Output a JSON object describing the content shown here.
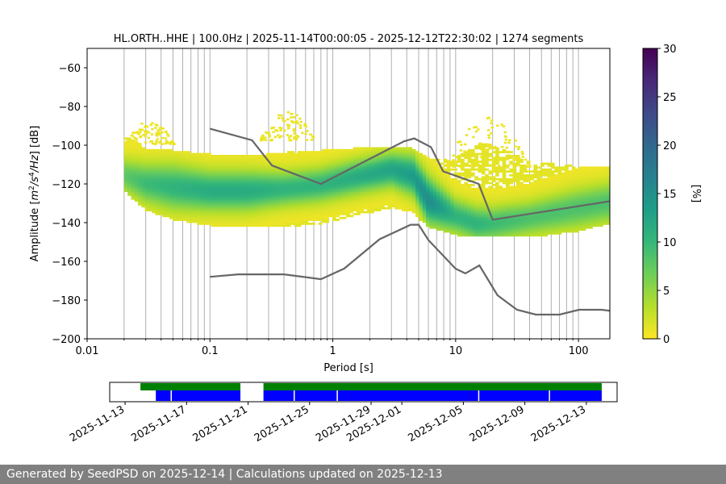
{
  "footer_text": "Generated by SeedPSD on 2025-12-14 | Calculations updated on 2025-12-13",
  "chart_data": {
    "type": "heatmap",
    "title": "HL.ORTH..HHE | 100.0Hz | 2025-11-14T00:00:05 - 2025-12-12T22:30:02 | 1274 segments",
    "xlabel": "Period [s]",
    "ylabel": "Amplitude [m²/s⁴/Hz] [dB]",
    "xscale": "log",
    "xlim": [
      0.01,
      180
    ],
    "ylim": [
      -200,
      -50
    ],
    "x_ticks": [
      0.01,
      0.1,
      1,
      10,
      100
    ],
    "x_tick_labels": [
      "0.01",
      "0.1",
      "1",
      "10",
      "100"
    ],
    "y_ticks": [
      -200,
      -180,
      -160,
      -140,
      -120,
      -100,
      -80,
      -60
    ],
    "y_tick_labels": [
      "−200",
      "−180",
      "−160",
      "−140",
      "−120",
      "−100",
      "−80",
      "−60"
    ],
    "grid": "vertical",
    "colorbar": {
      "label": "[%]",
      "range": [
        0,
        30
      ],
      "ticks": [
        0,
        5,
        10,
        15,
        20,
        25,
        30
      ],
      "tick_labels": [
        "0",
        "5",
        "10",
        "15",
        "20",
        "25",
        "30"
      ],
      "colormap": [
        "#fde725",
        "#b5de2b",
        "#6ece58",
        "#35b779",
        "#1f9e89",
        "#26828e",
        "#31688e",
        "#3e4989",
        "#482878",
        "#440154"
      ]
    },
    "density_band": {
      "periods": [
        0.02,
        0.03,
        0.05,
        0.1,
        0.2,
        0.4,
        0.8,
        1.5,
        3,
        4.5,
        6,
        10,
        15,
        20,
        40,
        100,
        180
      ],
      "center": [
        -116,
        -120,
        -122,
        -124,
        -124,
        -123,
        -121,
        -117,
        -113,
        -116,
        -129,
        -137,
        -141,
        -141,
        -138,
        -133,
        -130
      ],
      "inner": [
        6,
        7,
        8,
        7,
        7,
        6,
        6,
        6,
        6,
        7,
        8,
        6,
        6,
        6,
        6,
        7,
        7
      ],
      "upper": [
        -95,
        -103,
        -104,
        -106,
        -107,
        -105,
        -104,
        -103,
        -102,
        -103,
        -108,
        -108,
        -100,
        -100,
        -110,
        -112,
        -112
      ],
      "lower": [
        -123,
        -133,
        -138,
        -141,
        -142,
        -142,
        -140,
        -136,
        -132,
        -134,
        -142,
        -146,
        -147,
        -147,
        -147,
        -144,
        -140
      ],
      "peak": [
        7,
        9,
        10,
        11,
        11,
        10,
        10,
        11,
        12,
        13,
        15,
        10,
        10,
        9,
        8,
        8,
        8
      ],
      "scatter_regions": [
        {
          "periods": [
            0.02,
            0.05
          ],
          "top": -88,
          "bottom": -100
        },
        {
          "periods": [
            0.25,
            0.7
          ],
          "top": -83,
          "bottom": -98
        },
        {
          "periods": [
            8,
            40
          ],
          "top": -86,
          "bottom": -112
        }
      ]
    },
    "series": [
      {
        "name": "NHNM",
        "x": [
          0.1,
          0.22,
          0.32,
          0.8,
          3.8,
          4.6,
          6.3,
          7.9,
          15.4,
          20,
          354.8
        ],
        "y": [
          -91.5,
          -97.4,
          -110.5,
          -120,
          -98,
          -96.5,
          -101,
          -113.5,
          -120,
          -138.5,
          -126
        ]
      },
      {
        "name": "NLNM",
        "x": [
          0.1,
          0.17,
          0.4,
          0.8,
          1.24,
          2.4,
          4.3,
          5,
          6,
          10,
          12,
          15.6,
          21.9,
          31.6,
          45,
          70,
          101,
          154,
          328
        ],
        "y": [
          -168,
          -166.7,
          -166.7,
          -169.2,
          -163.7,
          -148.6,
          -141.1,
          -141.1,
          -149,
          -163.8,
          -166.2,
          -162.1,
          -177.5,
          -185,
          -187.5,
          -187.5,
          -185,
          -185,
          -187.5
        ]
      }
    ],
    "timeline": {
      "ticks": [
        "2025-11-13",
        "2025-11-17",
        "2025-11-21",
        "2025-11-25",
        "2025-11-29",
        "2025-12-01",
        "2025-12-05",
        "2025-12-09",
        "2025-12-13"
      ],
      "tick_days": [
        -1,
        3,
        7,
        11,
        15,
        17,
        21,
        25,
        29
      ],
      "xlim_days": [
        -2,
        31
      ],
      "green_segments": [
        [
          0,
          6.5
        ],
        [
          8,
          30
        ]
      ],
      "blue_segments": [
        [
          1,
          6.5
        ],
        [
          8,
          30
        ]
      ],
      "gap_marks": [
        2,
        10,
        12.8,
        22,
        26.6
      ]
    }
  }
}
